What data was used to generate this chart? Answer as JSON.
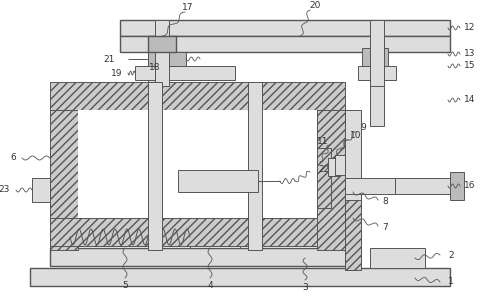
{
  "background_color": "#ffffff",
  "line_color": "#555555",
  "label_color": "#333333",
  "fig_width": 4.86,
  "fig_height": 3.06,
  "dpi": 100
}
